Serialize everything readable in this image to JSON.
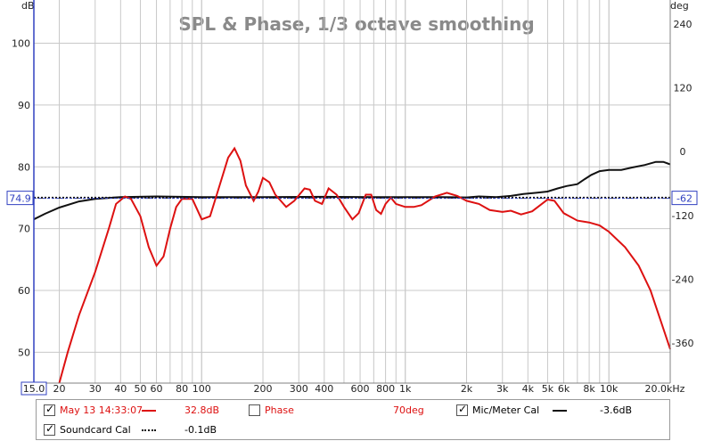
{
  "chart_data": {
    "type": "line",
    "title": "SPL & Phase, 1/3 octave smoothing",
    "left_axis": {
      "unit": "dB",
      "range": [
        45,
        107
      ],
      "ticks": [
        100,
        90,
        80,
        70,
        60,
        50
      ],
      "cursor_value": "74.9"
    },
    "right_axis": {
      "unit": "deg",
      "range": [
        -435,
        285
      ],
      "ticks": [
        240,
        120,
        0,
        -120,
        -240,
        -360
      ],
      "cursor_value": "-62"
    },
    "x_axis": {
      "scale": "log",
      "range": [
        15,
        20000
      ],
      "start_label": "15.0",
      "end_label": "20.0kHz",
      "ticks": [
        {
          "v": 20,
          "label": "20"
        },
        {
          "v": 30,
          "label": "30"
        },
        {
          "v": 40,
          "label": "40"
        },
        {
          "v": 50,
          "label": "50"
        },
        {
          "v": 60,
          "label": "60"
        },
        {
          "v": 80,
          "label": "80"
        },
        {
          "v": 100,
          "label": "100"
        },
        {
          "v": 200,
          "label": "200"
        },
        {
          "v": 300,
          "label": "300"
        },
        {
          "v": 400,
          "label": "400"
        },
        {
          "v": 600,
          "label": "600"
        },
        {
          "v": 800,
          "label": "800"
        },
        {
          "v": 1000,
          "label": "1k"
        },
        {
          "v": 2000,
          "label": "2k"
        },
        {
          "v": 3000,
          "label": "3k"
        },
        {
          "v": 4000,
          "label": "4k"
        },
        {
          "v": 5000,
          "label": "5k"
        },
        {
          "v": 6000,
          "label": "6k"
        },
        {
          "v": 8000,
          "label": "8k"
        },
        {
          "v": 10000,
          "label": "10k"
        }
      ]
    },
    "grid": true,
    "series": [
      {
        "name": "May 13 14:33:07",
        "axis": "left",
        "color": "#dd1111",
        "style": "solid",
        "points": [
          [
            20,
            45
          ],
          [
            22,
            50
          ],
          [
            25,
            56
          ],
          [
            30,
            63
          ],
          [
            35,
            70
          ],
          [
            38,
            74
          ],
          [
            42,
            75.2
          ],
          [
            45,
            74.8
          ],
          [
            50,
            72
          ],
          [
            55,
            67
          ],
          [
            60,
            64
          ],
          [
            65,
            65.5
          ],
          [
            70,
            70
          ],
          [
            75,
            73.5
          ],
          [
            80,
            74.8
          ],
          [
            90,
            74.8
          ],
          [
            100,
            71.5
          ],
          [
            110,
            72
          ],
          [
            120,
            76
          ],
          [
            135,
            81.5
          ],
          [
            145,
            83
          ],
          [
            155,
            81
          ],
          [
            165,
            77
          ],
          [
            180,
            74.5
          ],
          [
            190,
            76
          ],
          [
            200,
            78.2
          ],
          [
            215,
            77.5
          ],
          [
            230,
            75.5
          ],
          [
            260,
            73.5
          ],
          [
            285,
            74.5
          ],
          [
            320,
            76.5
          ],
          [
            340,
            76.3
          ],
          [
            360,
            74.5
          ],
          [
            390,
            74
          ],
          [
            420,
            76.5
          ],
          [
            460,
            75.5
          ],
          [
            500,
            73.5
          ],
          [
            550,
            71.5
          ],
          [
            590,
            72.5
          ],
          [
            640,
            75.5
          ],
          [
            680,
            75.5
          ],
          [
            720,
            73
          ],
          [
            760,
            72.4
          ],
          [
            800,
            74
          ],
          [
            850,
            75
          ],
          [
            900,
            74
          ],
          [
            1000,
            73.5
          ],
          [
            1100,
            73.5
          ],
          [
            1200,
            73.8
          ],
          [
            1400,
            75.2
          ],
          [
            1600,
            75.8
          ],
          [
            1800,
            75.3
          ],
          [
            2000,
            74.5
          ],
          [
            2300,
            74
          ],
          [
            2600,
            73
          ],
          [
            3000,
            72.7
          ],
          [
            3300,
            72.9
          ],
          [
            3700,
            72.3
          ],
          [
            4200,
            72.8
          ],
          [
            5000,
            74.7
          ],
          [
            5400,
            74.5
          ],
          [
            6000,
            72.5
          ],
          [
            7000,
            71.3
          ],
          [
            8000,
            71
          ],
          [
            9000,
            70.5
          ],
          [
            10000,
            69.5
          ],
          [
            12000,
            67
          ],
          [
            14000,
            64
          ],
          [
            16000,
            60
          ],
          [
            18000,
            55
          ],
          [
            20000,
            50.5
          ]
        ]
      },
      {
        "name": "Phase",
        "axis": "right",
        "enabled": false,
        "value_label": "70deg"
      },
      {
        "name": "Mic/Meter Cal",
        "axis": "left",
        "color": "#111111",
        "style": "solid",
        "points": [
          [
            15,
            71.5
          ],
          [
            17,
            72.4
          ],
          [
            20,
            73.4
          ],
          [
            25,
            74.4
          ],
          [
            30,
            74.8
          ],
          [
            40,
            75.1
          ],
          [
            60,
            75.2
          ],
          [
            100,
            75.1
          ],
          [
            200,
            75.1
          ],
          [
            400,
            75.15
          ],
          [
            700,
            75.1
          ],
          [
            1000,
            75.1
          ],
          [
            1500,
            75.1
          ],
          [
            2000,
            75.05
          ],
          [
            2300,
            75.2
          ],
          [
            2800,
            75.1
          ],
          [
            3300,
            75.3
          ],
          [
            3800,
            75.6
          ],
          [
            4400,
            75.8
          ],
          [
            5000,
            76
          ],
          [
            5600,
            76.5
          ],
          [
            6200,
            76.9
          ],
          [
            7000,
            77.2
          ],
          [
            7600,
            78
          ],
          [
            8200,
            78.7
          ],
          [
            9000,
            79.3
          ],
          [
            10000,
            79.5
          ],
          [
            11500,
            79.5
          ],
          [
            13000,
            79.9
          ],
          [
            15000,
            80.3
          ],
          [
            17000,
            80.8
          ],
          [
            18500,
            80.8
          ],
          [
            20000,
            80.4
          ]
        ]
      },
      {
        "name": "Soundcard Cal",
        "axis": "left",
        "color": "#111111",
        "style": "dotted",
        "points": [
          [
            15,
            75
          ],
          [
            20000,
            75
          ]
        ]
      }
    ]
  },
  "legend": {
    "items": [
      {
        "label": "May 13 14:33:07",
        "checked": true,
        "value": "32.8dB",
        "color": "#dd1111",
        "style": "solid"
      },
      {
        "label": "Phase",
        "checked": false,
        "value": "70deg",
        "color": "#dd1111",
        "style": "none"
      },
      {
        "label": "Mic/Meter Cal",
        "checked": true,
        "value": "-3.6dB",
        "color": "#111111",
        "style": "solid"
      },
      {
        "label": "Soundcard Cal",
        "checked": true,
        "value": "-0.1dB",
        "color": "#111111",
        "style": "dotted"
      }
    ],
    "checkmark_glyph": "✓"
  },
  "colors": {
    "grid": "#c8c8c8",
    "cursor": "#3040c0",
    "axis": "#3040c0",
    "frame": "#808080"
  }
}
